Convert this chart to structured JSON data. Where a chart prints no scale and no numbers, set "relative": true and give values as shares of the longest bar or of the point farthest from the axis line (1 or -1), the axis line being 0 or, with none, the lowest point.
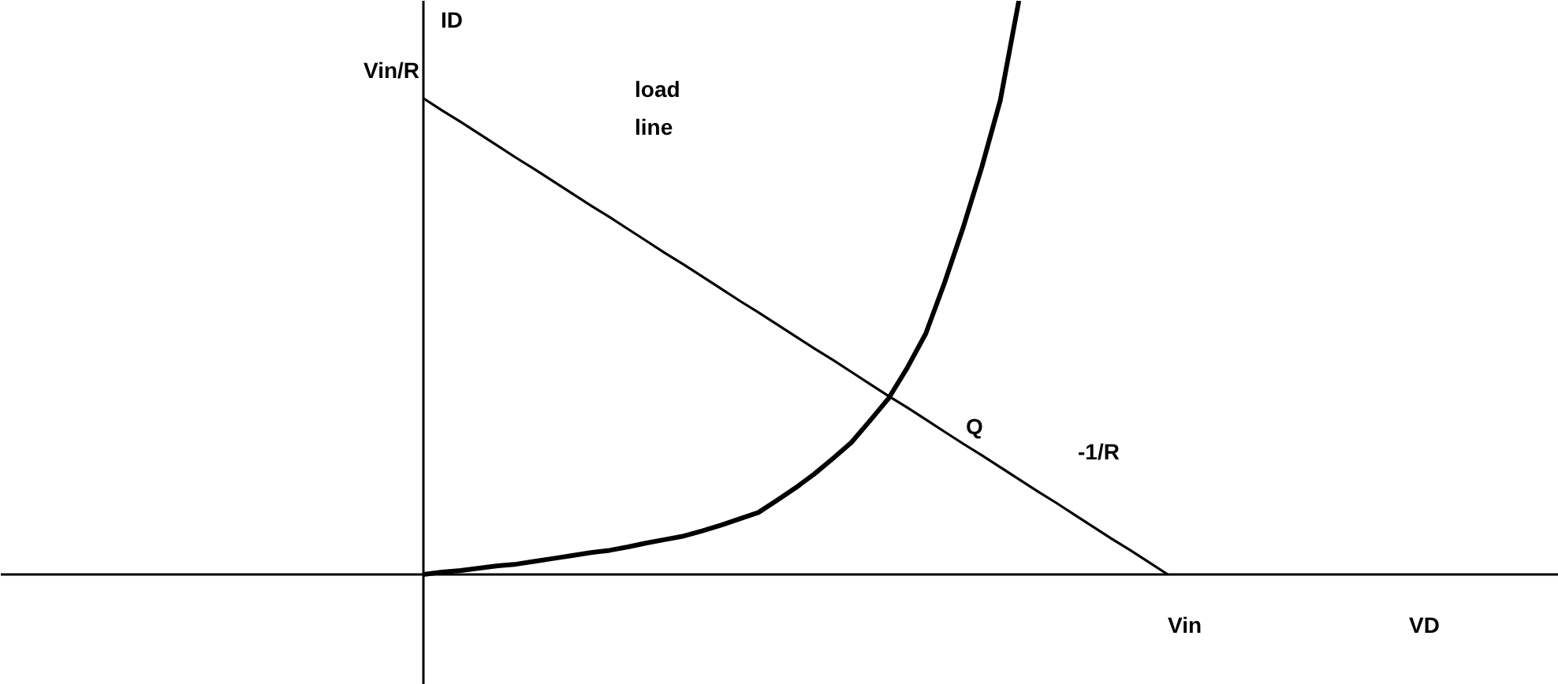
{
  "chart_data": {
    "type": "line",
    "relative": true,
    "ylabel": "ID",
    "grid": false,
    "marker": "none",
    "line_style": "solid",
    "categories": [
      null,
      null,
      null,
      null,
      null,
      null,
      null,
      null,
      null,
      null,
      null,
      null,
      null,
      null,
      null,
      null,
      null,
      null,
      null,
      null,
      null,
      null,
      null,
      null,
      null,
      null,
      null,
      null,
      null,
      null,
      null,
      null,
      null,
      null,
      null,
      null,
      null,
      null,
      null,
      null,
      null
    ],
    "series": [
      {
        "color": "#000000",
        "values": [
          0.83,
          0.809,
          0.789,
          0.768,
          0.747,
          0.726,
          0.706,
          0.685,
          0.664,
          0.643,
          0.623,
          0.602,
          0.581,
          0.56,
          0.54,
          0.519,
          0.498,
          0.477,
          0.457,
          0.436,
          0.415,
          0.394,
          0.374,
          0.353,
          0.332,
          0.311,
          0.291,
          0.27,
          0.249,
          0.228,
          0.208,
          0.187,
          0.166,
          0.145,
          0.125,
          0.104,
          0.083,
          0.062,
          0.042,
          0.021,
          0
        ]
      },
      {
        "color": "#000000",
        "values": [
          0,
          0.004,
          0.007,
          0.011,
          0.015,
          0.018,
          0.023,
          0.028,
          0.033,
          0.038,
          0.042,
          0.048,
          0.055,
          0.061,
          0.067,
          0.076,
          0.086,
          0.097,
          0.108,
          0.129,
          0.151,
          0.175,
          0.202,
          0.23,
          0.268,
          0.307,
          0.36,
          0.42,
          0.508,
          0.604,
          0.709,
          0.826,
          1.0,
          null,
          null,
          null,
          null,
          null,
          null,
          null,
          null
        ]
      }
    ],
    "annotations": [
      "Vin/R",
      "Vin",
      "load line",
      "Q",
      "-1/R",
      "VD"
    ]
  }
}
